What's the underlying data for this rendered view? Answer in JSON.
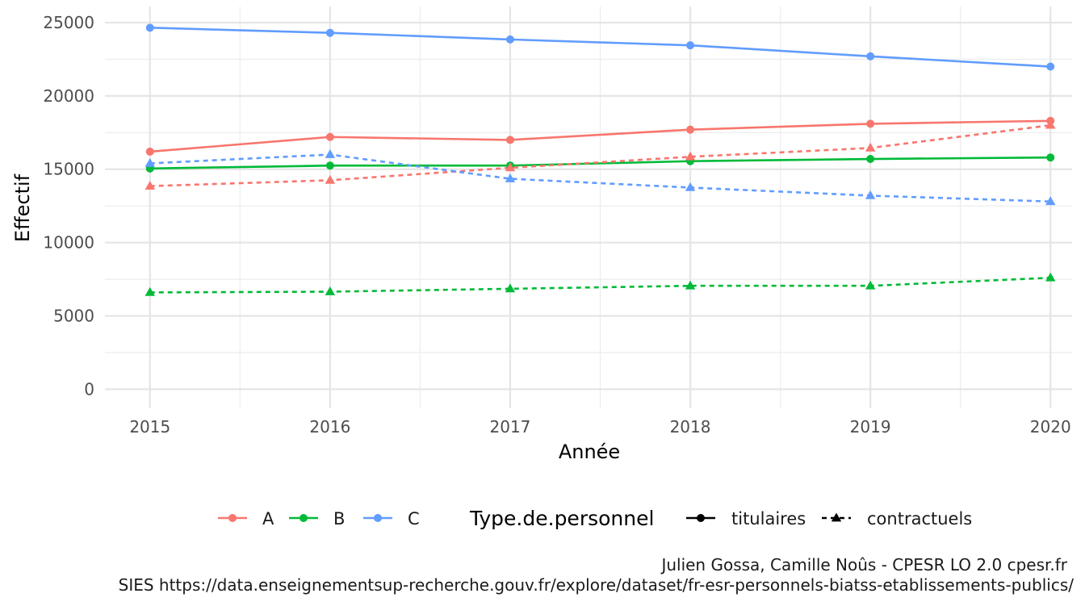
{
  "chart_data": {
    "type": "line",
    "title": "",
    "xlabel": "Année",
    "ylabel": "Effectif",
    "x": [
      2015,
      2016,
      2017,
      2018,
      2019,
      2020
    ],
    "x_tick_labels": [
      "2015",
      "2016",
      "2017",
      "2018",
      "2019",
      "2020"
    ],
    "y_ticks": [
      0,
      5000,
      10000,
      15000,
      20000,
      25000
    ],
    "y_tick_labels": [
      "0",
      "5000",
      "10000",
      "15000",
      "20000",
      "25000"
    ],
    "ylim": [
      -1300,
      26100
    ],
    "xlim": [
      2014.75,
      2020.12
    ],
    "grid": true,
    "legend_position": "bottom",
    "colour_legend": {
      "entries": [
        {
          "key": "A",
          "label": "A",
          "color": "#F8766D"
        },
        {
          "key": "B",
          "label": "B",
          "color": "#00BA38"
        },
        {
          "key": "C",
          "label": "C",
          "color": "#619CFF"
        }
      ]
    },
    "type_legend": {
      "title": "Type.de.personnel",
      "entries": [
        {
          "key": "titulaires",
          "label": "titulaires",
          "linestyle": "solid",
          "marker": "circle"
        },
        {
          "key": "contractuels",
          "label": "contractuels",
          "linestyle": "dashed",
          "marker": "triangle"
        }
      ]
    },
    "series": [
      {
        "category": "A",
        "type": "titulaires",
        "color": "#F8766D",
        "values": [
          16200,
          17200,
          17000,
          17700,
          18100,
          18300
        ]
      },
      {
        "category": "B",
        "type": "titulaires",
        "color": "#00BA38",
        "values": [
          15050,
          15250,
          15250,
          15550,
          15700,
          15800
        ]
      },
      {
        "category": "C",
        "type": "titulaires",
        "color": "#619CFF",
        "values": [
          24650,
          24300,
          23850,
          23450,
          22700,
          22000
        ]
      },
      {
        "category": "A",
        "type": "contractuels",
        "color": "#F8766D",
        "values": [
          13850,
          14250,
          15100,
          15850,
          16450,
          18000
        ]
      },
      {
        "category": "B",
        "type": "contractuels",
        "color": "#00BA38",
        "values": [
          6600,
          6650,
          6850,
          7050,
          7050,
          7600
        ]
      },
      {
        "category": "C",
        "type": "contractuels",
        "color": "#619CFF",
        "values": [
          15400,
          16000,
          14350,
          13750,
          13200,
          12800
        ]
      }
    ]
  },
  "caption": {
    "line1": "Julien Gossa, Camille Noûs - CPESR LO 2.0 cpesr.fr",
    "line2": "SIES https://data.enseignementsup-recherche.gouv.fr/explore/dataset/fr-esr-personnels-biatss-etablissements-publics/"
  }
}
